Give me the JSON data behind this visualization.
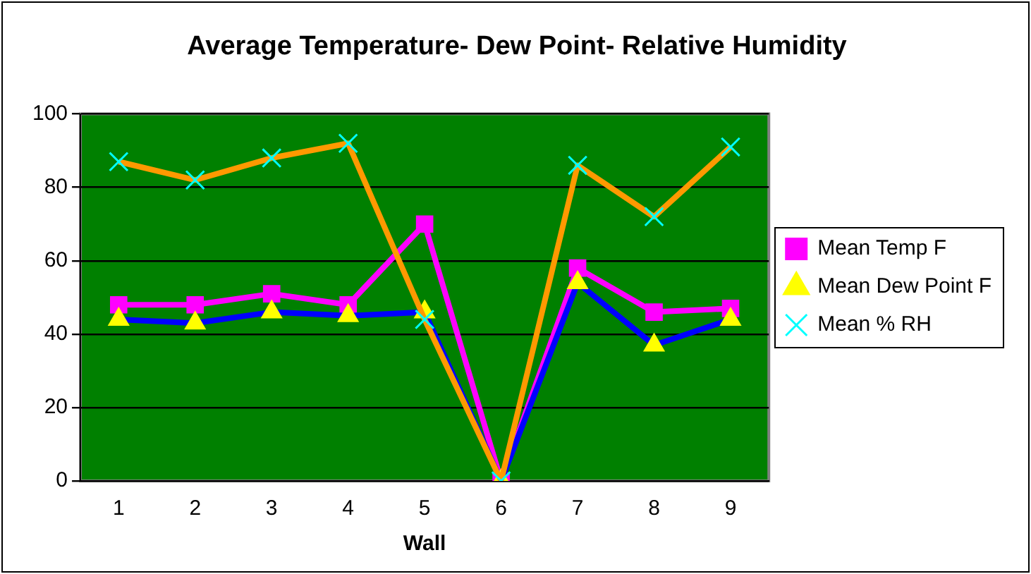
{
  "chart_data": {
    "type": "line",
    "title": "Average Temperature- Dew Point- Relative Humidity",
    "xlabel": "Wall",
    "categories": [
      "1",
      "2",
      "3",
      "4",
      "5",
      "6",
      "7",
      "8",
      "9"
    ],
    "series": [
      {
        "name": "Mean Temp F",
        "color": "#ff00ff",
        "marker": "square",
        "values": [
          48,
          48,
          51,
          48,
          70,
          0,
          58,
          46,
          47
        ]
      },
      {
        "name": "Mean Dew Point F",
        "color": "#0000ff",
        "marker": "triangle",
        "values": [
          44,
          43,
          46,
          45,
          46,
          0,
          54,
          37,
          44
        ]
      },
      {
        "name": "Mean % RH",
        "color": "#ff9900",
        "marker": "cross",
        "values": [
          87,
          82,
          88,
          92,
          44,
          0,
          86,
          72,
          91
        ]
      }
    ],
    "ylim": [
      0,
      100
    ],
    "yticks": [
      0,
      20,
      40,
      60,
      80,
      100
    ],
    "grid": "y",
    "legend": "right"
  }
}
